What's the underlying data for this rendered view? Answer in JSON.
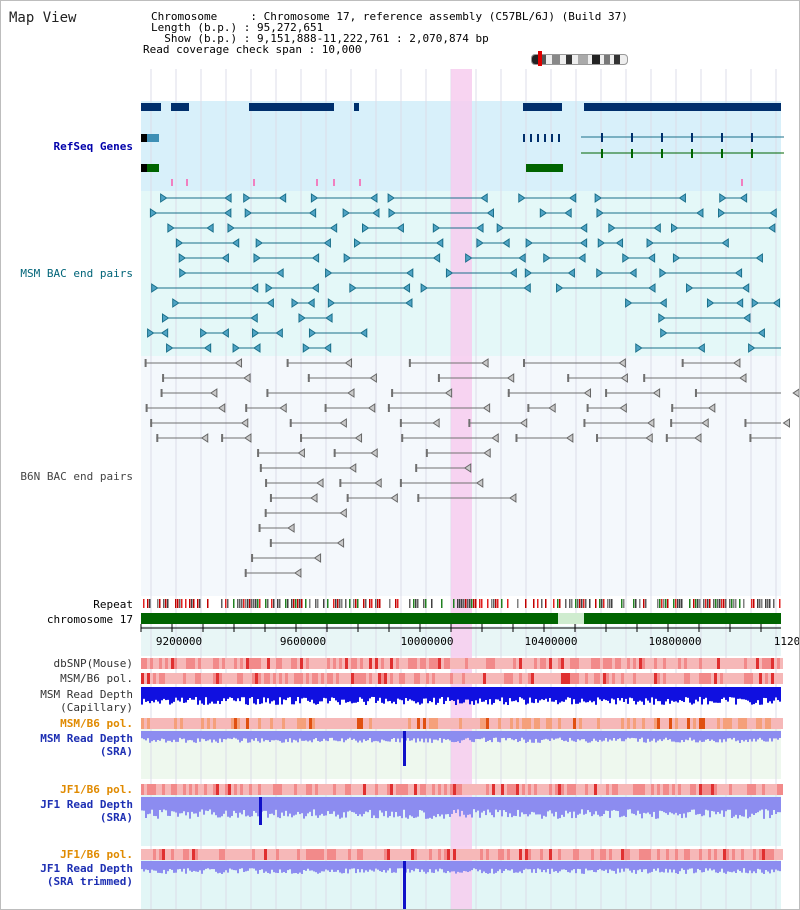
{
  "title": "Map View",
  "info": {
    "line1": "Chromosome     : Chromosome 17, reference assembly (C57BL/6J) (Build 37)",
    "line2": "Length (b.p.) : 95,272,651",
    "line3": "  Show (b.p.) : 9,151,888-11,222,761 : 2,070,874 bp",
    "line4": "Read coverage check span : 10,000"
  },
  "labels": {
    "refseq": "RefSeq Genes",
    "msm_bac": "MSM BAC end pairs",
    "b6n_bac": "B6N BAC end pairs",
    "repeat": "Repeat",
    "chromosome": "chromosome 17",
    "dbsnp": "dbSNP(Mouse)",
    "msm_b6_pol_a": "MSM/B6 pol.",
    "msm_read_depth_cap_1": "MSM Read Depth",
    "msm_read_depth_cap_2": "(Capillary)",
    "msm_b6_pol_b": "MSM/B6 pol.",
    "msm_read_depth_sra_1": "MSM Read Depth",
    "msm_read_depth_sra_2": "(SRA)",
    "jf1_b6_pol_a": "JF1/B6 pol.",
    "jf1_read_depth_sra_1": "JF1 Read Depth",
    "jf1_read_depth_sra_2": "(SRA)",
    "jf1_b6_pol_b": "JF1/B6 pol.",
    "jf1_read_depth_trim_1": "JF1 Read Depth",
    "jf1_read_depth_trim_2": "(SRA trimmed)"
  },
  "axis_ticks": [
    "9200000",
    "9600000",
    "10000000",
    "10400000",
    "10800000",
    "1120"
  ],
  "colors": {
    "refseq_bg": "#d8f0fa",
    "bac_bg": "#e4f8f8",
    "b6n_bg": "#f4f8fc",
    "highlight": "#f7cdee",
    "gene_navy": "#002f6c",
    "gene_green": "#006400",
    "msm_teal": "#1a6f8a",
    "b6n_gray": "#707070",
    "depth_blue": "#1010e0",
    "depth_lightblue": "#8c8cf0",
    "pol_red": "#e03030",
    "orange_label": "#e08a00"
  }
}
